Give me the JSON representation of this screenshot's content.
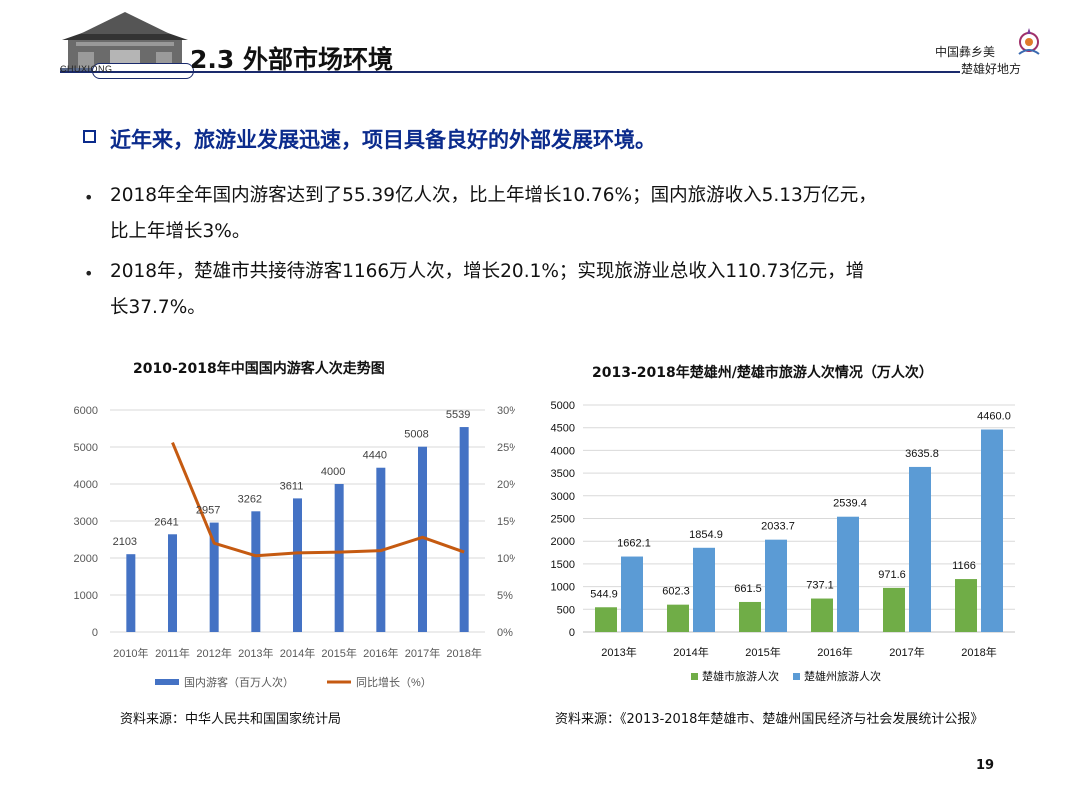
{
  "header": {
    "section_title": "2.3 外部市场环境",
    "city_name": "CHUXIONG",
    "slogan_line1": "中国彝乡美",
    "slogan_line2": "楚雄好地方"
  },
  "headline": "近年来，旅游业发展迅速，项目具备良好的外部发展环境。",
  "bullets": [
    {
      "line1": "2018年全年国内游客达到了55.39亿人次，比上年增长10.76%；国内旅游收入5.13万亿元，",
      "line2": "比上年增长3%。"
    },
    {
      "line1": "2018年，楚雄市共接待游客1166万人次，增长20.1%；实现旅游业总收入110.73亿元，增",
      "line2": "长37.7%。"
    }
  ],
  "chart_data": [
    {
      "type": "bar",
      "title": "2010-2018年中国国内游客人次走势图",
      "categories": [
        "2010年",
        "2011年",
        "2012年",
        "2013年",
        "2014年",
        "2015年",
        "2016年",
        "2017年",
        "2018年"
      ],
      "series": [
        {
          "name": "国内游客（百万人次）",
          "type": "bar",
          "axis": "left",
          "color": "#4472C4",
          "values": [
            2103,
            2641,
            2957,
            3262,
            3611,
            4000,
            4440,
            5008,
            5539
          ]
        },
        {
          "name": "同比增长（%）",
          "type": "line",
          "axis": "right",
          "color": "#C55A11",
          "values": [
            null,
            25.6,
            12.0,
            10.3,
            10.7,
            10.8,
            11.0,
            12.8,
            10.8
          ]
        }
      ],
      "y_left_ticks": [
        "0",
        "1000",
        "2000",
        "3000",
        "4000",
        "5000",
        "6000"
      ],
      "y_right_ticks": [
        "0%",
        "5%",
        "10%",
        "15%",
        "20%",
        "25%",
        "30%"
      ],
      "ylim_left": [
        0,
        6000
      ],
      "ylim_right": [
        0,
        30
      ],
      "data_labels": [
        "2103",
        "2641",
        "2957",
        "3262",
        "3611",
        "4000",
        "4440",
        "5008",
        "5539"
      ],
      "legend_position": "bottom",
      "grid": true
    },
    {
      "type": "bar",
      "title": "2013-2018年楚雄州/楚雄市旅游人次情况（万人次）",
      "categories": [
        "2013年",
        "2014年",
        "2015年",
        "2016年",
        "2017年",
        "2018年"
      ],
      "series": [
        {
          "name": "楚雄市旅游人次",
          "color": "#70AD47",
          "values": [
            544.9,
            602.3,
            661.5,
            737.1,
            971.6,
            1166
          ],
          "labels": [
            "544.9",
            "602.3",
            "661.5",
            "737.1",
            "971.6",
            "1166"
          ]
        },
        {
          "name": "楚雄州旅游人次",
          "color": "#5B9BD5",
          "values": [
            1662.1,
            1854.9,
            2033.7,
            2539.4,
            3635.8,
            4460.0
          ],
          "labels": [
            "1662.1",
            "1854.9",
            "2033.7",
            "2539.4",
            "3635.8",
            "4460.0"
          ]
        }
      ],
      "y_ticks": [
        "0",
        "500",
        "1000",
        "1500",
        "2000",
        "2500",
        "3000",
        "3500",
        "4000",
        "4500",
        "5000"
      ],
      "ylim": [
        0,
        5000
      ],
      "legend_position": "bottom",
      "grid": true
    }
  ],
  "sources": {
    "left": "资料来源：中华人民共和国国家统计局",
    "right": "资料来源：《2013-2018年楚雄市、楚雄州国民经济与社会发展统计公报》"
  },
  "page_number": "19"
}
